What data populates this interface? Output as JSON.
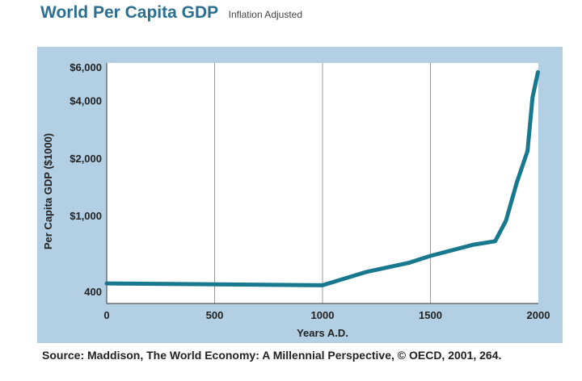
{
  "header": {
    "title": "World Per Capita GDP",
    "subtitle": "Inflation Adjusted"
  },
  "source": "Source: Maddison, The World Economy: A Millennial Perspective, © OECD, 2001, 264.",
  "colors": {
    "line": "#17788e",
    "panel": "#b3cfe3",
    "plot_bg": "#ffffff",
    "grid": "#999999",
    "title": "#2a6f8f"
  },
  "chart_data": {
    "type": "line",
    "title": "World Per Capita GDP",
    "subtitle": "Inflation Adjusted",
    "xlabel": "Years A.D.",
    "ylabel": "Per Capita GDP  ($1000)",
    "xlim": [
      0,
      2000
    ],
    "x_ticks": [
      0,
      500,
      1000,
      1500,
      2000
    ],
    "x_tick_labels": [
      "0",
      "500",
      "1000",
      "1500",
      "2000"
    ],
    "y_scale": "log",
    "y_ticks": [
      400,
      1000,
      2000,
      4000,
      6000
    ],
    "y_tick_labels": [
      "400",
      "$1,000",
      "$2,000",
      "$4,000",
      "$6,000"
    ],
    "grid": "vertical",
    "series": [
      {
        "name": "World Per Capita GDP",
        "x": [
          0,
          1000,
          1200,
          1400,
          1500,
          1700,
          1800,
          1850,
          1900,
          1950,
          1973,
          1998
        ],
        "y": [
          445,
          435,
          510,
          570,
          620,
          710,
          740,
          950,
          1500,
          2200,
          4200,
          5700
        ]
      }
    ]
  }
}
